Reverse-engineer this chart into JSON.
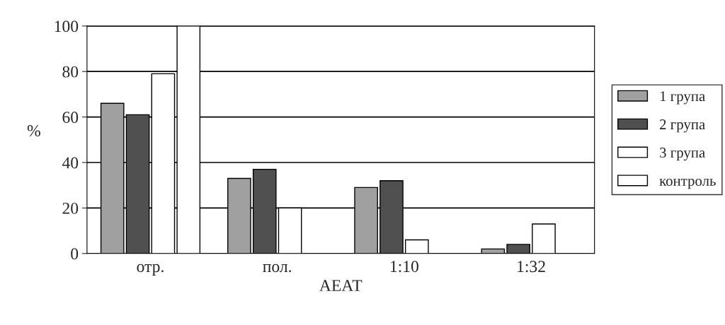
{
  "chart_data": {
    "type": "bar",
    "xlabel": "АЕАТ",
    "ylabel": "%",
    "categories": [
      "отр.",
      "пол.",
      "1:10",
      "1:32"
    ],
    "series": [
      {
        "name": "1 група",
        "color": "#a0a0a0",
        "values": [
          66,
          33,
          29,
          2
        ]
      },
      {
        "name": "2 група",
        "color": "#505050",
        "values": [
          61,
          37,
          32,
          4
        ]
      },
      {
        "name": "3 група",
        "color": "#ffffff",
        "values": [
          79,
          20,
          6,
          13
        ]
      },
      {
        "name": "контроль",
        "color": "#ffffff",
        "values": [
          100,
          0,
          0,
          0
        ]
      }
    ],
    "ylim": [
      0,
      100
    ],
    "yticks": [
      0,
      20,
      40,
      60,
      80,
      100
    ],
    "grid": "y",
    "legend": "right"
  }
}
